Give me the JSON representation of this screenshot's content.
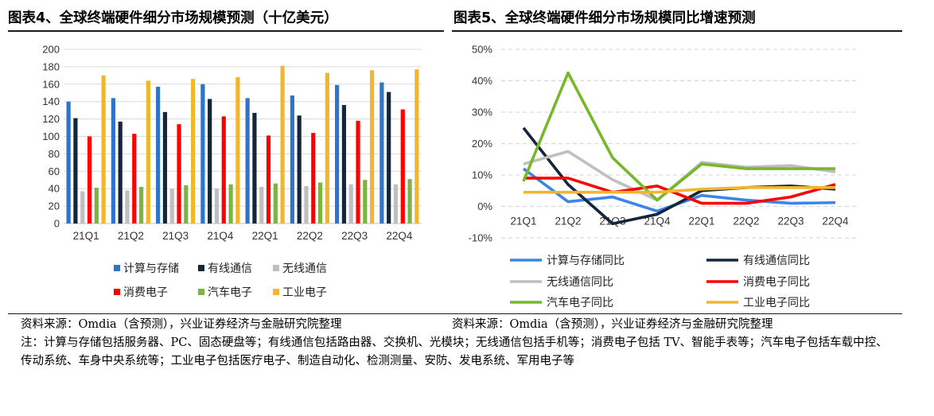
{
  "panel_left": {
    "title": "图表4、全球终端硬件细分市场规模预测（十亿美元）",
    "source": "资料来源：Omdia（含预测），兴业证券经济与金融研究院整理"
  },
  "panel_right": {
    "title": "图表5、全球终端硬件细分市场规模同比增速预测",
    "source": "资料来源：Omdia（含预测），兴业证券经济与金融研究院整理"
  },
  "note": "注：计算与存储包括服务器、PC、固态硬盘等；有线通信包括路由器、交换机、光模块；无线通信包括手机等；消费电子包括 TV、智能手表等；汽车电子包括车载中控、传动系统、车身中央系统等；工业电子包括医疗电子、制造自动化、检测测量、安防、发电系统、军用电子等",
  "chart_data": [
    {
      "type": "bar",
      "title": "",
      "categories": [
        "21Q1",
        "21Q2",
        "21Q3",
        "21Q4",
        "22Q1",
        "22Q2",
        "22Q3",
        "22Q4"
      ],
      "ylim": [
        0,
        200
      ],
      "yticks": [
        0,
        20,
        40,
        60,
        80,
        100,
        120,
        140,
        160,
        180,
        200
      ],
      "grid": true,
      "legend": "bottom",
      "series": [
        {
          "name": "计算与存储",
          "color": "#2e75c9",
          "values": [
            140,
            144,
            157,
            160,
            144,
            147,
            159,
            162
          ]
        },
        {
          "name": "有线通信",
          "color": "#14263a",
          "values": [
            121,
            117,
            128,
            143,
            127,
            124,
            136,
            151
          ]
        },
        {
          "name": "无线通信",
          "color": "#bfbfbf",
          "values": [
            37,
            38,
            40,
            40,
            42,
            43,
            45,
            45
          ]
        },
        {
          "name": "消费电子",
          "color": "#ff0000",
          "values": [
            100,
            103,
            114,
            123,
            101,
            104,
            118,
            131
          ]
        },
        {
          "name": "汽车电子",
          "color": "#7cb342",
          "values": [
            41,
            42,
            44,
            45,
            46,
            47,
            50,
            51
          ]
        },
        {
          "name": "工业电子",
          "color": "#f1b62b",
          "values": [
            170,
            164,
            166,
            168,
            181,
            173,
            176,
            177
          ]
        }
      ]
    },
    {
      "type": "line",
      "title": "",
      "x": [
        "21Q1",
        "21Q2",
        "21Q3",
        "21Q4",
        "22Q1",
        "22Q2",
        "22Q3",
        "22Q4"
      ],
      "ylim": [
        -10,
        50
      ],
      "yticks": [
        "-10%",
        "0%",
        "10%",
        "20%",
        "30%",
        "40%",
        "50%"
      ],
      "ytick_values": [
        -10,
        0,
        10,
        20,
        30,
        40,
        50
      ],
      "grid": true,
      "legend": "bottom",
      "series": [
        {
          "name": "计算与存储同比",
          "color": "#3a86e8",
          "values": [
            12,
            1.5,
            3,
            -1.5,
            3.5,
            2,
            1,
            1.2
          ]
        },
        {
          "name": "有线通信同比",
          "color": "#14263a",
          "values": [
            25,
            7,
            -5.5,
            -2.5,
            5,
            6,
            6.5,
            5.5
          ]
        },
        {
          "name": "无线通信同比",
          "color": "#bfbfbf",
          "values": [
            13.5,
            17.5,
            8.5,
            2,
            14,
            12.5,
            13,
            11
          ]
        },
        {
          "name": "消费电子同比",
          "color": "#ff0000",
          "values": [
            9,
            9,
            4.5,
            6.5,
            1,
            1,
            3,
            7
          ]
        },
        {
          "name": "汽车电子同比",
          "color": "#76b82a",
          "values": [
            8,
            42.5,
            15.5,
            2,
            13.5,
            12,
            12,
            12
          ]
        },
        {
          "name": "工业电子同比",
          "color": "#f1b62b",
          "values": [
            4.5,
            4.5,
            4.5,
            4.5,
            5.5,
            6,
            6,
            6
          ]
        }
      ]
    }
  ]
}
